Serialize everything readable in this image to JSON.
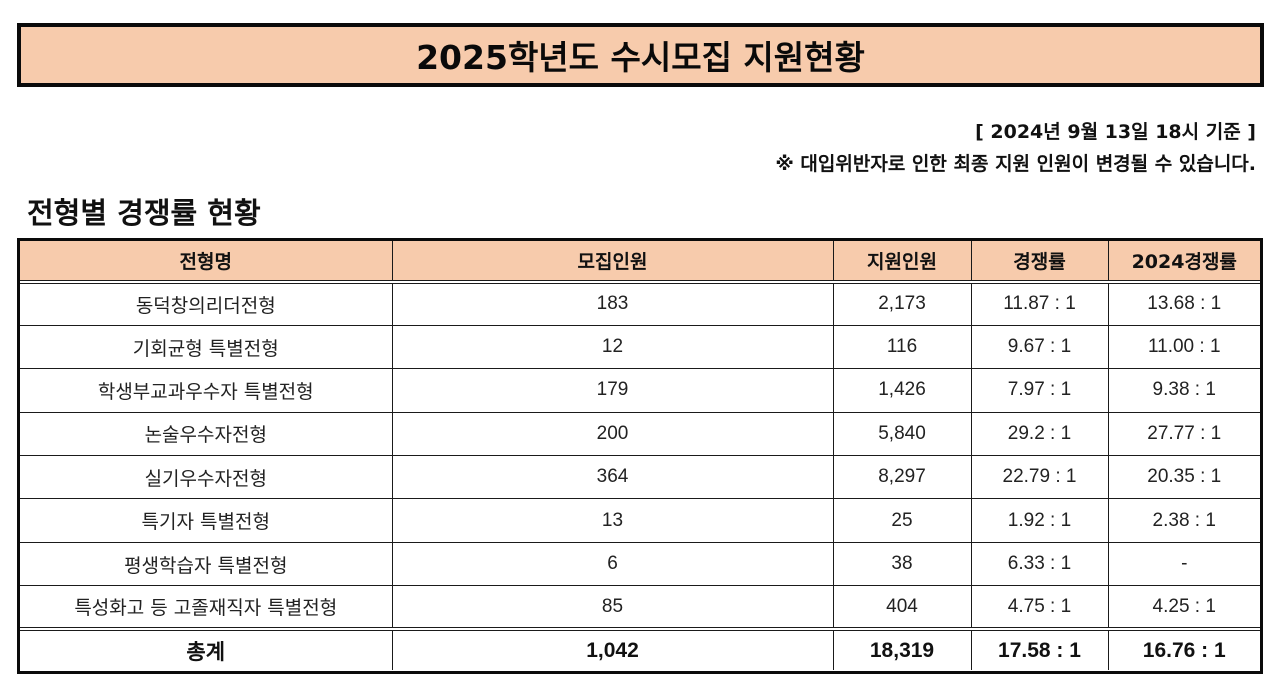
{
  "header": {
    "title": "2025학년도 수시모집 지원현황"
  },
  "notices": {
    "as_of": "[ 2024년 9월 13일 18시 기준 ]",
    "warning": "※ 대입위반자로 인한 최종 지원 인원이 변경될 수 있습니다."
  },
  "section": {
    "title": "전형별 경쟁률 현황"
  },
  "table": {
    "columns": [
      "전형명",
      "모집인원",
      "지원인원",
      "경쟁률",
      "2024경쟁률"
    ],
    "rows": [
      {
        "name": "동덕창의리더전형",
        "quota": "183",
        "applicants": "2,173",
        "ratio": "11.87 : 1",
        "ratio_2024": "13.68 : 1"
      },
      {
        "name": "기회균형 특별전형",
        "quota": "12",
        "applicants": "116",
        "ratio": "9.67 : 1",
        "ratio_2024": "11.00 : 1"
      },
      {
        "name": "학생부교과우수자 특별전형",
        "quota": "179",
        "applicants": "1,426",
        "ratio": "7.97 : 1",
        "ratio_2024": "9.38 : 1"
      },
      {
        "name": "논술우수자전형",
        "quota": "200",
        "applicants": "5,840",
        "ratio": "29.2 : 1",
        "ratio_2024": "27.77 : 1"
      },
      {
        "name": "실기우수자전형",
        "quota": "364",
        "applicants": "8,297",
        "ratio": "22.79 : 1",
        "ratio_2024": "20.35 : 1"
      },
      {
        "name": "특기자 특별전형",
        "quota": "13",
        "applicants": "25",
        "ratio": "1.92 : 1",
        "ratio_2024": "2.38 : 1"
      },
      {
        "name": "평생학습자 특별전형",
        "quota": "6",
        "applicants": "38",
        "ratio": "6.33 : 1",
        "ratio_2024": "-"
      },
      {
        "name": "특성화고 등 고졸재직자 특별전형",
        "quota": "85",
        "applicants": "404",
        "ratio": "4.75 : 1",
        "ratio_2024": "4.25 : 1"
      }
    ],
    "total": {
      "name": "총계",
      "quota": "1,042",
      "applicants": "18,319",
      "ratio": "17.58 : 1",
      "ratio_2024": "16.76 : 1"
    }
  },
  "colors": {
    "header_fill": "#F7CBAC",
    "border": "#0a0a0a",
    "background": "#ffffff"
  }
}
